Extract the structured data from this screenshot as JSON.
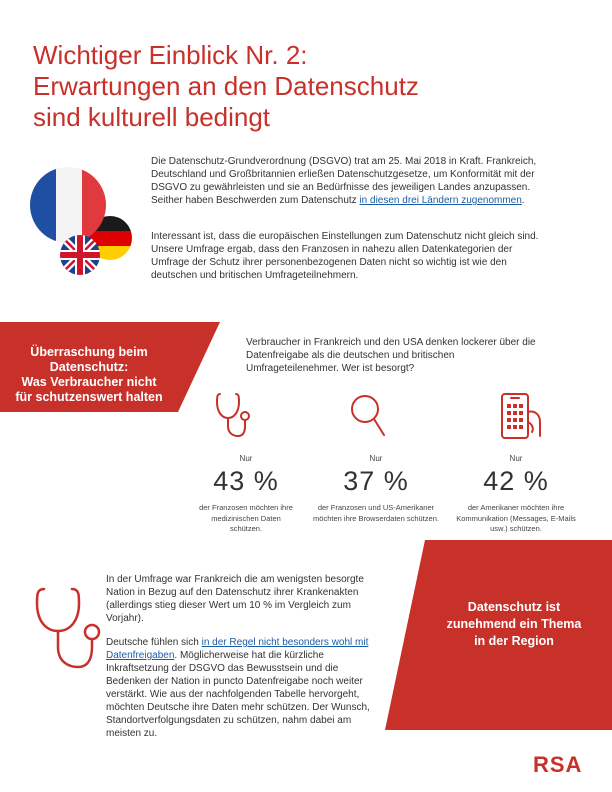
{
  "title": {
    "line1": "Wichtiger Einblick Nr. 2:",
    "line2": "Erwartungen an den Datenschutz",
    "line3": "sind kulturell bedingt"
  },
  "intro": {
    "p1_text": "Die Datenschutz-Grundverordnung (DSGVO) trat am 25. Mai 2018 in Kraft. Frankreich, Deutschland und Großbritannien erließen Datenschutzgesetze, um Konformität mit der DSGVO zu gewährleisten und sie an Bedürfnisse des jeweiligen Landes anzupassen. Seither haben Beschwerden zum Datenschutz ",
    "p1_link": "in diesen drei Ländern zugenommen",
    "p1_end": ".",
    "p2_text": "Interessant ist, dass die europäischen Einstellungen zum Datenschutz nicht gleich sind. Unsere Umfrage ergab, dass den Franzosen in nahezu allen Datenkategorien der Umfrage der Schutz ihrer personenbezogenen Daten nicht so wichtig ist wie den deutschen und britischen Umfrageteilnehmern."
  },
  "banner_left": {
    "line1": "Überraschung beim",
    "line2": "Datenschutz:",
    "line3": "Was Verbraucher nicht",
    "line4": "für schutzenswert halten"
  },
  "consumers_text": "Verbraucher in Frankreich und den USA denken lockerer über die Datenfreigabe als die deutschen und britischen Umfrageteilenehmer. Wer ist besorgt?",
  "stats": [
    {
      "nur": "Nur",
      "value": "43 %",
      "desc": "der Franzosen möchten ihre medizinischen Daten schützen."
    },
    {
      "nur": "Nur",
      "value": "37 %",
      "desc": "der Franzosen und US-Amerikaner möchten ihre Browserdaten schützen."
    },
    {
      "nur": "Nur",
      "value": "42 %",
      "desc": "der Amerikaner möchten ihre Kommunikation (Messages, E-Mails usw.) schützen."
    }
  ],
  "body": {
    "p4_text": "In der Umfrage war Frankreich die am wenigsten besorgte Nation in Bezug auf den Datenschutz ihrer Krankenakten (allerdings stieg dieser Wert um 10 % im Vergleich zum Vorjahr).",
    "p5_start": "Deutsche fühlen sich ",
    "p5_link": "in der Regel nicht besonders wohl mit Datenfreigaben",
    "p5_text": ". Möglicherweise hat die kürzliche Inkraftsetzung der DSGVO das Bewusstsein und die Bedenken der Nation in puncto Datenfreigabe noch weiter verstärkt. Wie aus der nachfolgenden Tabelle hervorgeht, möchten Deutsche ihre Daten mehr schützen. Der Wunsch, Standortverfolgungsdaten zu schützen, nahm dabei am meisten zu."
  },
  "banner_right": {
    "line1": "Datenschutz ist",
    "line2": "zunehmend ein Thema",
    "line3": "in der Region"
  },
  "logo": "RSA",
  "colors": {
    "accent": "#c8302a"
  }
}
